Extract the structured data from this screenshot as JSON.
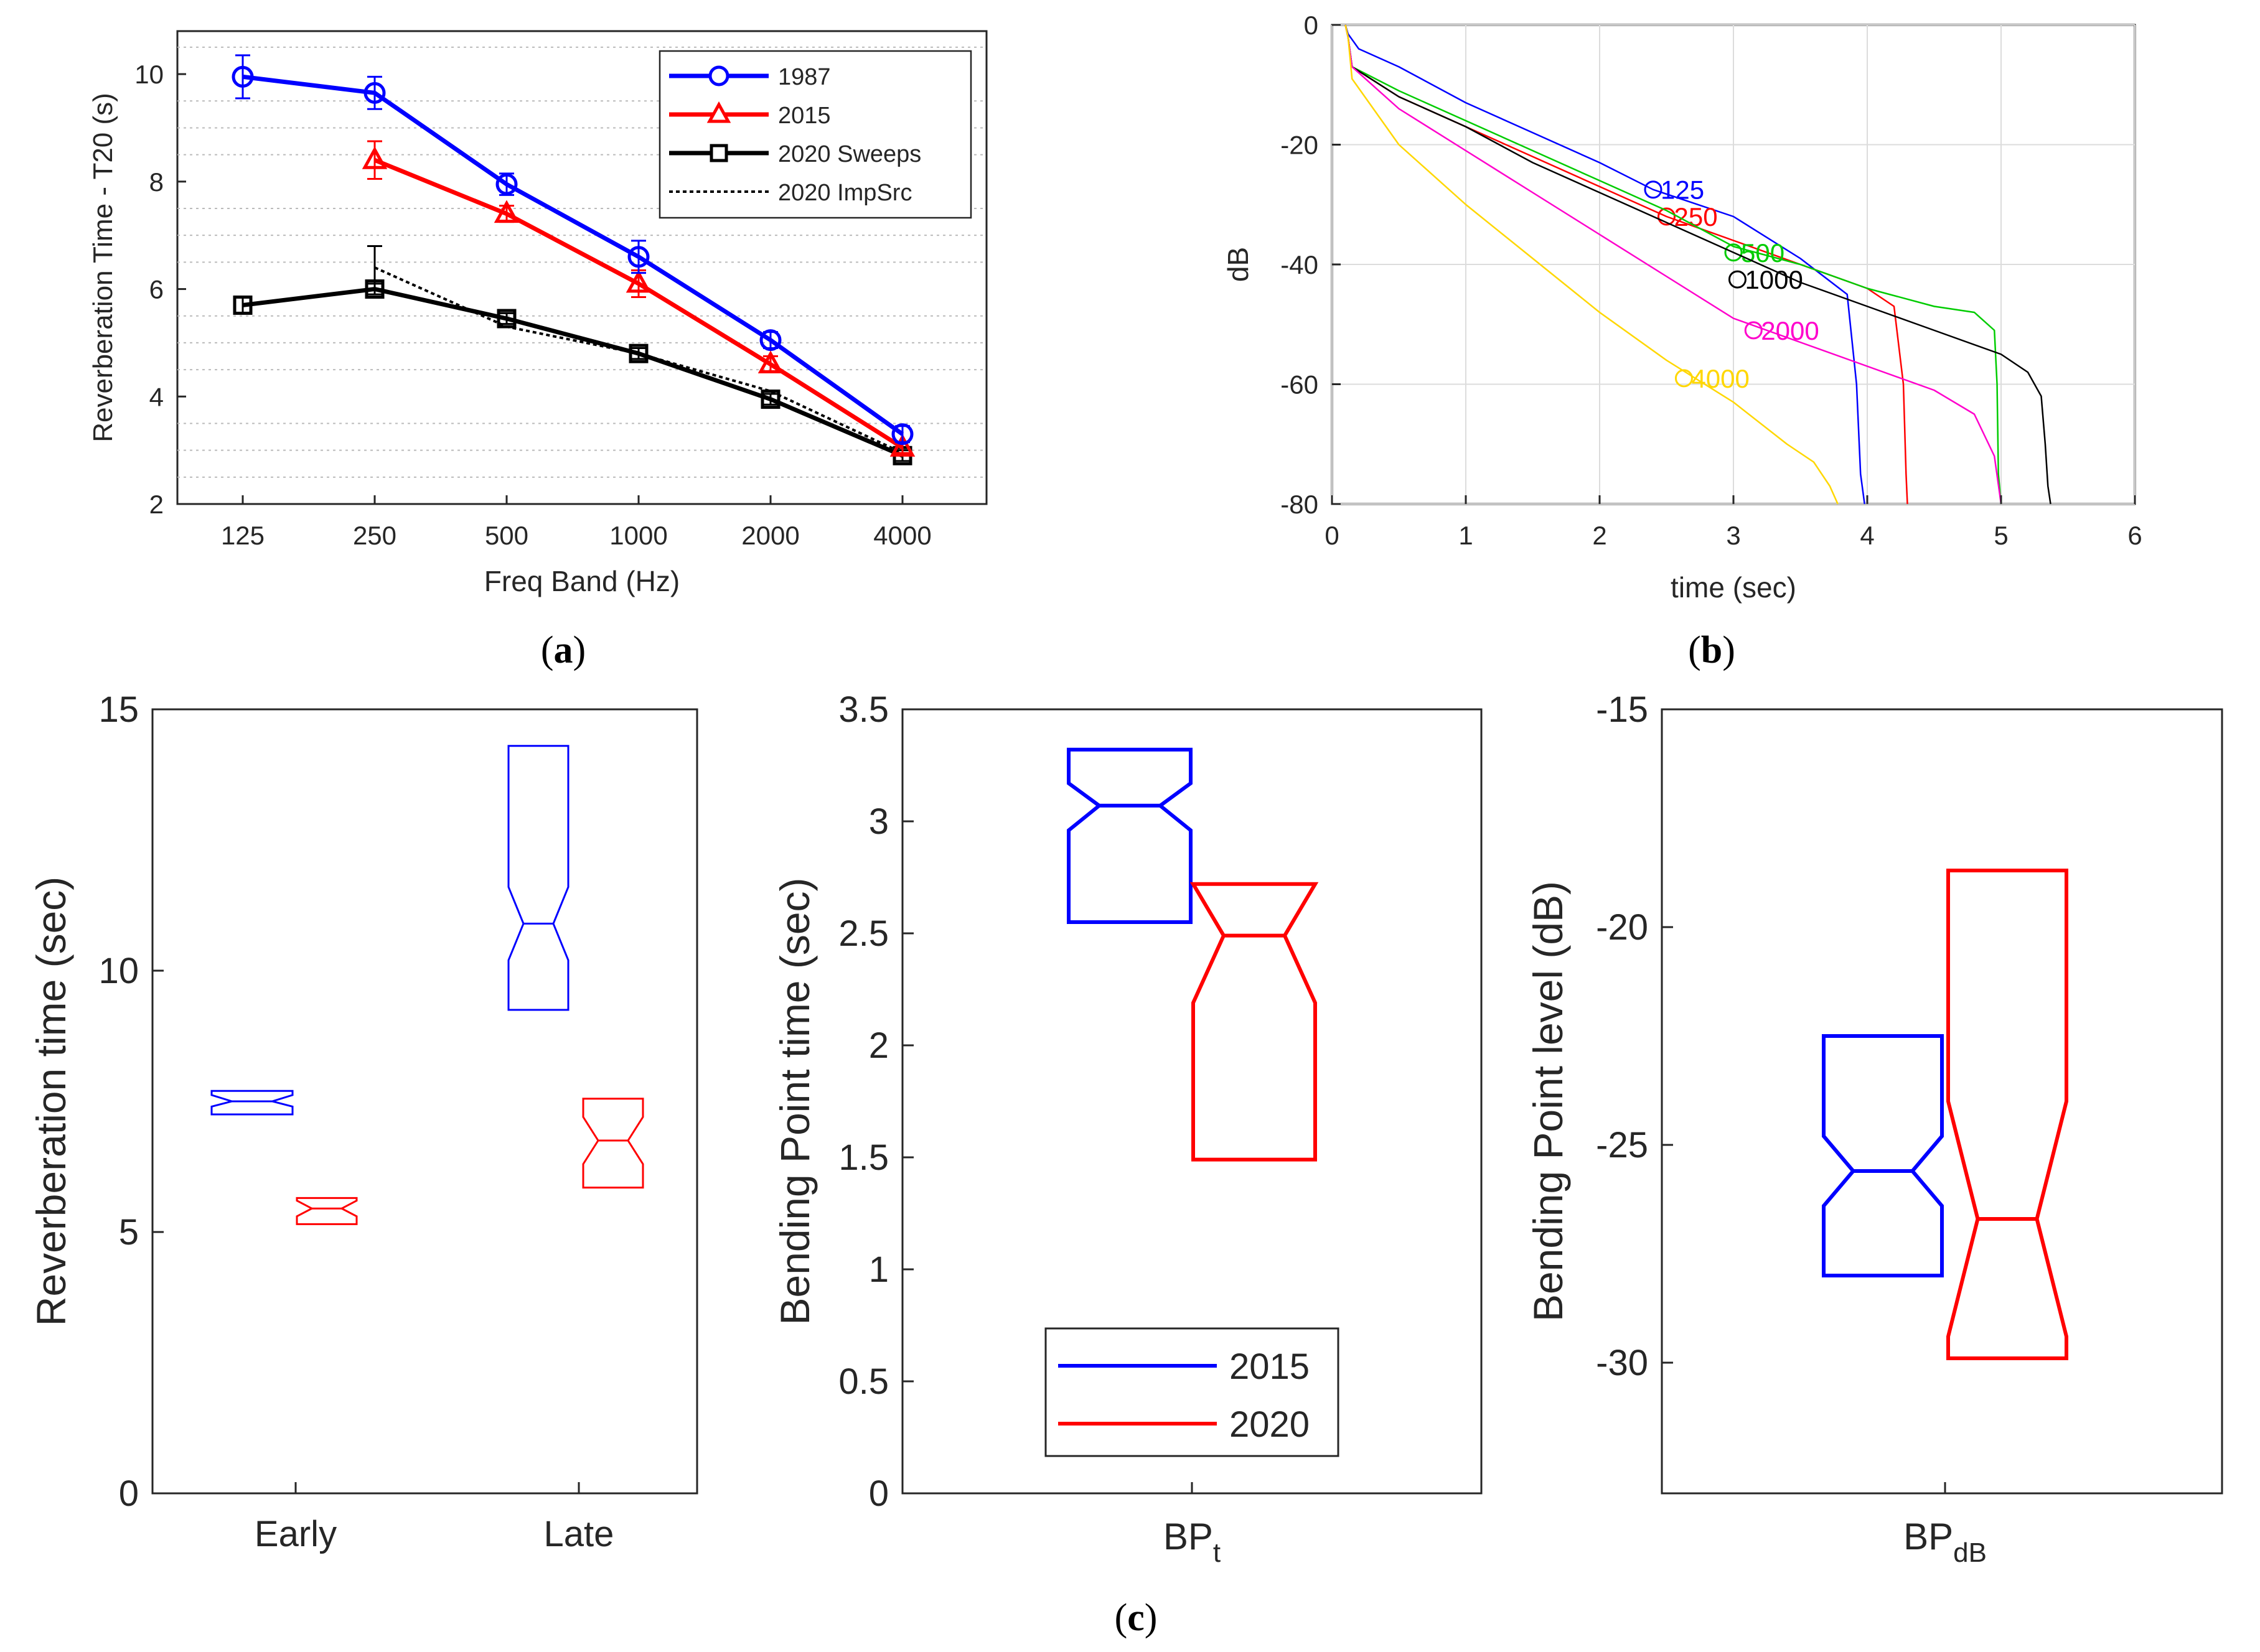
{
  "panels": {
    "a": {
      "label": "(",
      "letter": "a",
      "close": ")"
    },
    "b": {
      "label": "(",
      "letter": "b",
      "close": ")"
    },
    "c": {
      "label": "(",
      "letter": "c",
      "close": ")"
    }
  },
  "chart_data": [
    {
      "id": "a",
      "type": "line",
      "xlabel": "Freq Band (Hz)",
      "ylabel": "Reverberation Time - T20 (s)",
      "categories": [
        "125",
        "250",
        "500",
        "1000",
        "2000",
        "4000"
      ],
      "ylim": [
        2,
        10.8
      ],
      "yticks": [
        "2",
        "4",
        "6",
        "8",
        "10"
      ],
      "minor_grid": true,
      "legend_position": "top-right",
      "series": [
        {
          "name": "1987",
          "color": "#0000ff",
          "marker": "circle",
          "style": "solid",
          "values": [
            9.95,
            9.65,
            7.95,
            6.6,
            5.05,
            3.3
          ],
          "errors": [
            0.4,
            0.3,
            0.2,
            0.3,
            0.15,
            0.15
          ]
        },
        {
          "name": "2015",
          "color": "#ff0000",
          "marker": "triangle",
          "style": "solid",
          "values": [
            null,
            8.4,
            7.4,
            6.1,
            4.6,
            3.05
          ],
          "errors": [
            null,
            0.35,
            0.15,
            0.25,
            0.15,
            0.1
          ]
        },
        {
          "name": "2020 Sweeps",
          "color": "#000000",
          "marker": "square",
          "style": "solid",
          "values": [
            5.7,
            6.0,
            5.45,
            4.8,
            3.95,
            2.9
          ],
          "errors": [
            0.15,
            0.1,
            0.1,
            0.1,
            0.1,
            0.1
          ]
        },
        {
          "name": "2020 ImpSrc",
          "color": "#000000",
          "marker": "none",
          "style": "dotted",
          "values": [
            null,
            6.4,
            5.3,
            4.8,
            4.1,
            2.95
          ],
          "errors": [
            null,
            0.4,
            0,
            0,
            0,
            0
          ]
        }
      ]
    },
    {
      "id": "b",
      "type": "line",
      "xlabel": "time (sec)",
      "ylabel": "dB",
      "xlim": [
        0,
        6
      ],
      "ylim": [
        -80,
        0
      ],
      "xticks": [
        "0",
        "1",
        "2",
        "3",
        "4",
        "5",
        "6"
      ],
      "yticks": [
        "0",
        "-20",
        "-40",
        "-60",
        "-80"
      ],
      "grid": true,
      "series": [
        {
          "name": "125",
          "color": "#0000ff",
          "label_at": [
            2.4,
            -27.5
          ],
          "x": [
            0.1,
            0.12,
            0.2,
            0.5,
            1,
            1.5,
            2,
            2.4,
            3,
            3.5,
            3.85,
            3.92,
            3.95,
            3.98
          ],
          "y": [
            0,
            -1.5,
            -4,
            -7,
            -13,
            -18,
            -23,
            -27.5,
            -32,
            -39,
            -45,
            -60,
            -75,
            -80
          ]
        },
        {
          "name": "250",
          "color": "#ff0000",
          "label_at": [
            2.5,
            -32
          ],
          "x": [
            0.1,
            0.12,
            0.15,
            0.5,
            1,
            1.5,
            2,
            2.5,
            3,
            3.5,
            4.0,
            4.2,
            4.27,
            4.29,
            4.3
          ],
          "y": [
            0,
            -2,
            -7,
            -12,
            -17,
            -22,
            -27,
            -32,
            -36,
            -40,
            -44,
            -47,
            -60,
            -75,
            -80
          ]
        },
        {
          "name": "500",
          "color": "#00cc00",
          "label_at": [
            3.0,
            -38
          ],
          "x": [
            0.1,
            0.12,
            0.15,
            0.5,
            1,
            1.5,
            2,
            2.5,
            3,
            3.5,
            4,
            4.5,
            4.8,
            4.95,
            4.97,
            4.98,
            5.0
          ],
          "y": [
            0,
            -2,
            -7,
            -11,
            -16,
            -21,
            -26,
            -31,
            -37,
            -40,
            -44,
            -47,
            -48,
            -51,
            -60,
            -75,
            -80
          ]
        },
        {
          "name": "1000",
          "color": "#000000",
          "label_at": [
            3.03,
            -42.5
          ],
          "x": [
            0.1,
            0.12,
            0.15,
            0.5,
            1,
            1.5,
            2,
            2.5,
            3,
            3.5,
            4,
            4.5,
            5,
            5.2,
            5.3,
            5.33,
            5.35,
            5.37
          ],
          "y": [
            0,
            -2,
            -7,
            -12,
            -17,
            -23,
            -28,
            -33,
            -38,
            -43,
            -47,
            -51,
            -55,
            -58,
            -62,
            -70,
            -77,
            -80
          ]
        },
        {
          "name": "2000",
          "color": "#ff00cc",
          "label_at": [
            3.15,
            -51
          ],
          "x": [
            0.1,
            0.12,
            0.15,
            0.5,
            1,
            1.5,
            2,
            2.5,
            3,
            3.5,
            4,
            4.5,
            4.8,
            4.95,
            5.0
          ],
          "y": [
            0,
            -2,
            -7,
            -14,
            -21,
            -28,
            -35,
            -42,
            -49,
            -53,
            -57,
            -61,
            -65,
            -72,
            -80
          ]
        },
        {
          "name": "4000",
          "color": "#ffd700",
          "label_at": [
            2.63,
            -59
          ],
          "x": [
            0.1,
            0.12,
            0.15,
            0.5,
            1,
            1.5,
            2,
            2.5,
            3,
            3.4,
            3.6,
            3.72,
            3.78
          ],
          "y": [
            0,
            -2,
            -9,
            -20,
            -30,
            -39,
            -48,
            -56,
            -63,
            -70,
            -73,
            -77,
            -80
          ]
        }
      ]
    },
    {
      "id": "c1",
      "type": "box",
      "xlabel": "",
      "ylabel": "Reverberation time (sec)",
      "categories": [
        "Early",
        "Late"
      ],
      "ylim": [
        0,
        15
      ],
      "yticks": [
        "0",
        "5",
        "10",
        "15"
      ],
      "series": [
        {
          "name": "2015",
          "color": "#0000ff",
          "boxes": [
            {
              "category": "Early",
              "q1": 7.25,
              "median": 7.5,
              "q3": 7.7,
              "notch_lo": 7.4,
              "notch_hi": 7.62
            },
            {
              "category": "Late",
              "q1": 9.25,
              "median": 10.9,
              "q3": 14.3,
              "notch_lo": 10.2,
              "notch_hi": 11.6
            }
          ]
        },
        {
          "name": "2020",
          "color": "#ff0000",
          "boxes": [
            {
              "category": "Early",
              "q1": 5.15,
              "median": 5.45,
              "q3": 5.65,
              "notch_lo": 5.3,
              "notch_hi": 5.6
            },
            {
              "category": "Late",
              "q1": 5.85,
              "median": 6.75,
              "q3": 7.55,
              "notch_lo": 6.3,
              "notch_hi": 7.2
            }
          ]
        }
      ]
    },
    {
      "id": "c2",
      "type": "box",
      "xlabel_main": "BP",
      "xlabel_sub": "t",
      "ylabel": "Bending Point time (sec)",
      "ylim": [
        0,
        3.5
      ],
      "yticks": [
        "0",
        "0.5",
        "1",
        "1.5",
        "2",
        "2.5",
        "3",
        "3.5"
      ],
      "legend_position": "bottom-center",
      "series": [
        {
          "name": "2015",
          "color": "#0000ff",
          "boxes": [
            {
              "category": "BPt",
              "q1": 2.55,
              "median": 3.07,
              "q3": 3.32,
              "notch_lo": 2.96,
              "notch_hi": 3.17
            }
          ]
        },
        {
          "name": "2020",
          "color": "#ff0000",
          "boxes": [
            {
              "category": "BPt",
              "q1": 1.49,
              "median": 2.49,
              "q3": 2.72,
              "notch_lo": 2.19,
              "notch_hi": 2.72
            }
          ]
        }
      ]
    },
    {
      "id": "c3",
      "type": "box",
      "xlabel_main": "BP",
      "xlabel_sub": "dB",
      "ylabel": "Bending Point level (dB)",
      "ylim": [
        -33,
        -15
      ],
      "yticks": [
        "-30",
        "-25",
        "-20",
        "-15"
      ],
      "series": [
        {
          "name": "2015",
          "color": "#0000ff",
          "boxes": [
            {
              "category": "BPdB",
              "q1": -28.0,
              "median": -25.6,
              "q3": -22.5,
              "notch_lo": -26.4,
              "notch_hi": -24.8
            }
          ]
        },
        {
          "name": "2020",
          "color": "#ff0000",
          "boxes": [
            {
              "category": "BPdB",
              "q1": -29.9,
              "median": -26.7,
              "q3": -18.7,
              "notch_lo": -29.4,
              "notch_hi": -24.0
            }
          ]
        }
      ]
    }
  ]
}
